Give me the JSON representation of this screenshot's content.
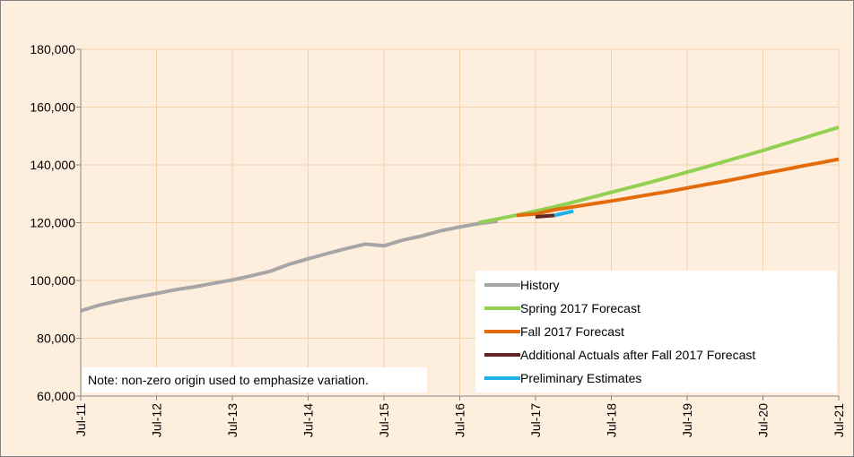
{
  "chart_data": {
    "type": "line",
    "note": "Note: non-zero origin used to emphasize variation.",
    "x": [
      "Jul-11",
      null,
      null,
      null,
      "Jul-12",
      null,
      null,
      null,
      "Jul-13",
      null,
      null,
      null,
      "Jul-14",
      null,
      null,
      null,
      "Jul-15",
      null,
      null,
      null,
      "Jul-16",
      null,
      null,
      null,
      "Jul-17",
      null,
      null,
      null,
      "Jul-18",
      null,
      null,
      null,
      "Jul-19",
      null,
      null,
      null,
      "Jul-20",
      null,
      null,
      null,
      "Jul-21"
    ],
    "series": [
      {
        "name": "History",
        "color": "#a6a6a6",
        "values": [
          89500,
          91500,
          93000,
          94300,
          95500,
          96800,
          97800,
          99000,
          100200,
          101600,
          103200,
          105600,
          107500,
          109300,
          111000,
          112600,
          112000,
          114000,
          115400,
          117200,
          118500,
          119700,
          120500,
          null,
          null,
          null,
          null,
          null,
          null,
          null,
          null,
          null,
          null,
          null,
          null,
          null,
          null,
          null,
          null,
          null,
          null
        ]
      },
      {
        "name": "Spring 2017 Forecast",
        "color": "#92d050",
        "values": [
          null,
          null,
          null,
          null,
          null,
          null,
          null,
          null,
          null,
          null,
          null,
          null,
          null,
          null,
          null,
          null,
          null,
          null,
          null,
          null,
          null,
          120000,
          121300,
          122600,
          124000,
          125500,
          127100,
          128800,
          130500,
          132200,
          133900,
          135700,
          137500,
          139300,
          141200,
          143100,
          145000,
          147000,
          149000,
          151000,
          153000
        ]
      },
      {
        "name": "Fall 2017 Forecast",
        "color": "#e36c0a",
        "values": [
          null,
          null,
          null,
          null,
          null,
          null,
          null,
          null,
          null,
          null,
          null,
          null,
          null,
          null,
          null,
          null,
          null,
          null,
          null,
          null,
          null,
          null,
          null,
          122500,
          123000,
          124500,
          125500,
          126500,
          127500,
          128600,
          129700,
          130800,
          132000,
          133200,
          134400,
          135700,
          137000,
          138200,
          139500,
          140700,
          142000
        ]
      },
      {
        "name": "Additional Actuals after Fall 2017 Forecast",
        "color": "#632523",
        "values": [
          null,
          null,
          null,
          null,
          null,
          null,
          null,
          null,
          null,
          null,
          null,
          null,
          null,
          null,
          null,
          null,
          null,
          null,
          null,
          null,
          null,
          null,
          null,
          null,
          122000,
          122500,
          null,
          null,
          null,
          null,
          null,
          null,
          null,
          null,
          null,
          null,
          null,
          null,
          null,
          null,
          null
        ]
      },
      {
        "name": "Preliminary Estimates",
        "color": "#1fb0e8",
        "values": [
          null,
          null,
          null,
          null,
          null,
          null,
          null,
          null,
          null,
          null,
          null,
          null,
          null,
          null,
          null,
          null,
          null,
          null,
          null,
          null,
          null,
          null,
          null,
          null,
          null,
          122500,
          124000,
          null,
          null,
          null,
          null,
          null,
          null,
          null,
          null,
          null,
          null,
          null,
          null,
          null,
          null
        ]
      }
    ],
    "ylim": [
      60000,
      180000
    ],
    "yticks": [
      {
        "value": 60000,
        "label": "60,000"
      },
      {
        "value": 80000,
        "label": "80,000"
      },
      {
        "value": 100000,
        "label": "100,000"
      },
      {
        "value": 120000,
        "label": "120,000"
      },
      {
        "value": 140000,
        "label": "140,000"
      },
      {
        "value": 160000,
        "label": "160,000"
      },
      {
        "value": 180000,
        "label": "180,000"
      }
    ],
    "grid": true
  }
}
